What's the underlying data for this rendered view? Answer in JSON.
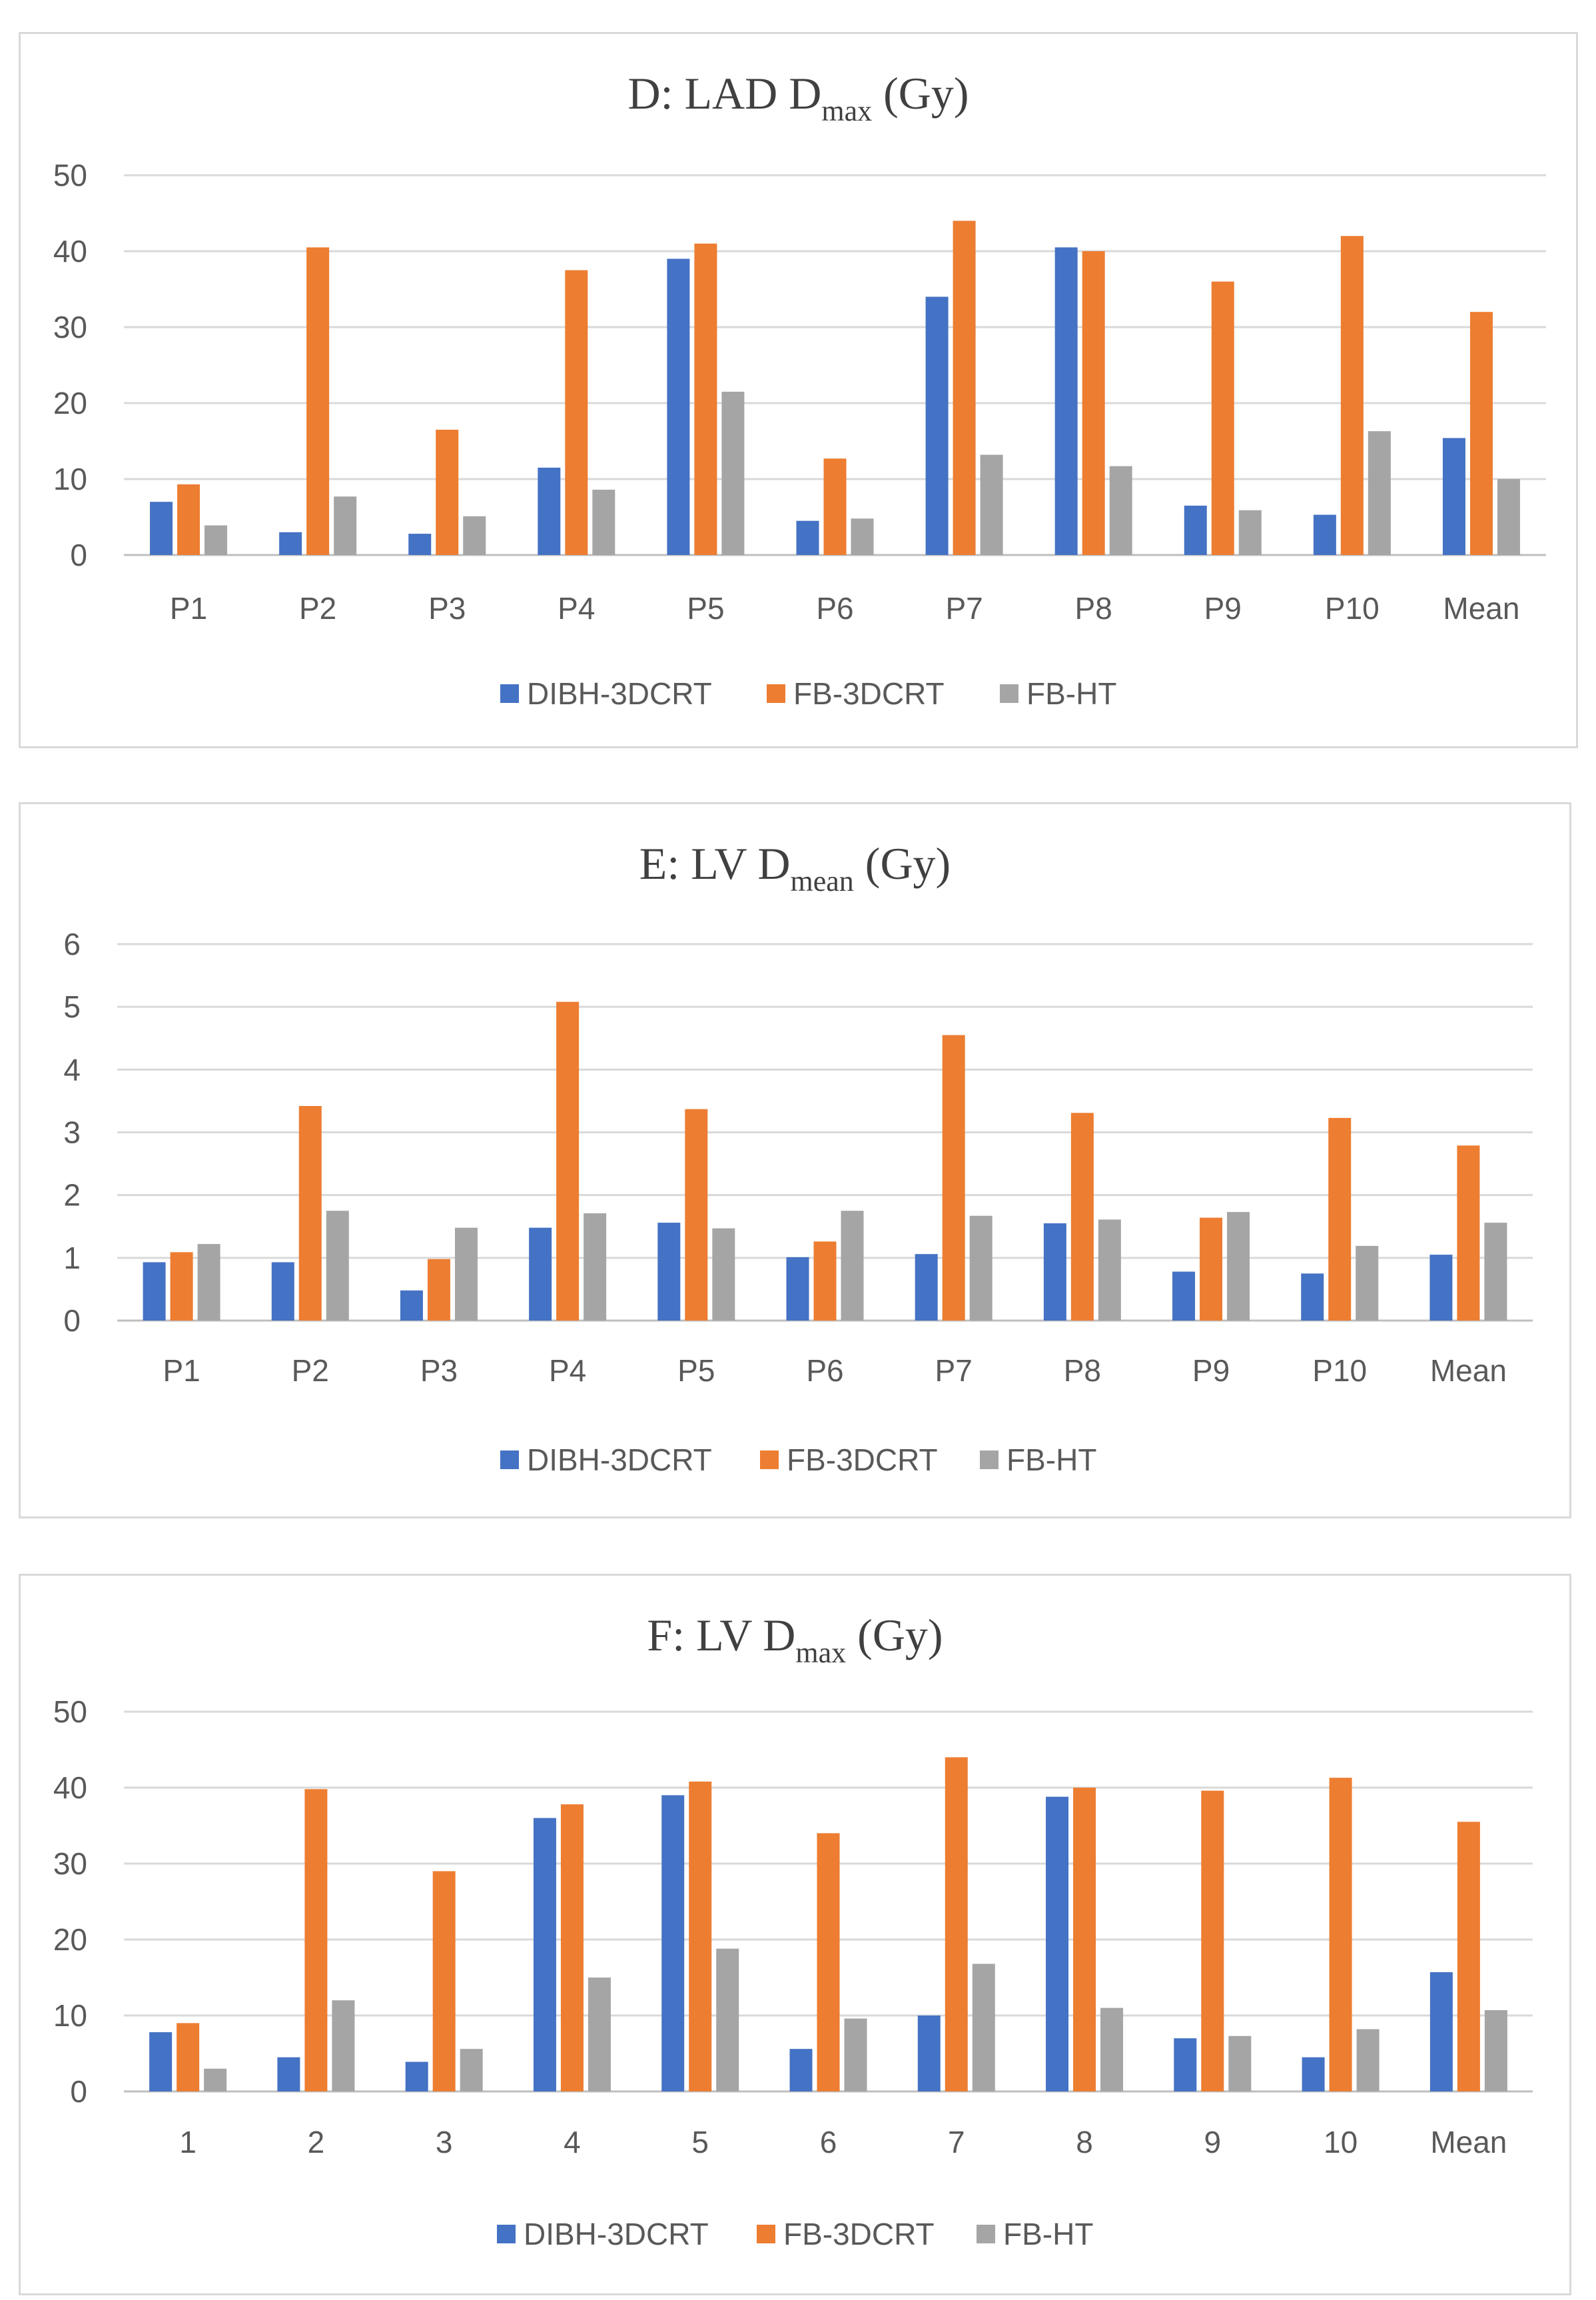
{
  "chart_data": [
    {
      "id": "d",
      "type": "bar",
      "title": "D: LAD Dmax (Gy)",
      "title_parts": {
        "prefix": "D: LAD D",
        "subscript": "max",
        "suffix": " (Gy)"
      },
      "categories": [
        "P1",
        "P2",
        "P3",
        "P4",
        "P5",
        "P6",
        "P7",
        "P8",
        "P9",
        "P10",
        "Mean"
      ],
      "ylim": [
        0,
        50
      ],
      "yticks": [
        0,
        10,
        20,
        30,
        40,
        50
      ],
      "grid": true,
      "legend_position": "bottom",
      "series": [
        {
          "name": "DIBH-3DCRT",
          "color": "#4472C4",
          "values": [
            7.0,
            3.0,
            2.8,
            11.5,
            39.0,
            4.5,
            34.0,
            40.5,
            6.5,
            5.3,
            15.4
          ]
        },
        {
          "name": "FB-3DCRT",
          "color": "#ED7D31",
          "values": [
            9.3,
            40.5,
            16.5,
            37.5,
            41.0,
            12.7,
            44.0,
            40.0,
            36.0,
            42.0,
            32.0
          ]
        },
        {
          "name": "FB-HT",
          "color": "#A5A5A5",
          "values": [
            3.9,
            7.7,
            5.1,
            8.6,
            21.5,
            4.8,
            13.2,
            11.7,
            5.9,
            16.3,
            10.0
          ]
        }
      ]
    },
    {
      "id": "e",
      "type": "bar",
      "title": "E: LV Dmean (Gy)",
      "title_parts": {
        "prefix": "E: LV D",
        "subscript": "mean",
        "suffix": " (Gy)"
      },
      "categories": [
        "P1",
        "P2",
        "P3",
        "P4",
        "P5",
        "P6",
        "P7",
        "P8",
        "P9",
        "P10",
        "Mean"
      ],
      "ylim": [
        0,
        6
      ],
      "yticks": [
        0,
        1,
        2,
        3,
        4,
        5,
        6
      ],
      "grid": true,
      "legend_position": "bottom",
      "series": [
        {
          "name": "DIBH-3DCRT",
          "color": "#4472C4",
          "values": [
            0.93,
            0.93,
            0.48,
            1.48,
            1.56,
            1.01,
            1.06,
            1.55,
            0.78,
            0.75,
            1.05
          ]
        },
        {
          "name": "FB-3DCRT",
          "color": "#ED7D31",
          "values": [
            1.09,
            3.42,
            0.98,
            5.08,
            3.37,
            1.26,
            4.55,
            3.31,
            1.64,
            3.23,
            2.79
          ]
        },
        {
          "name": "FB-HT",
          "color": "#A5A5A5",
          "values": [
            1.22,
            1.75,
            1.48,
            1.71,
            1.47,
            1.75,
            1.67,
            1.61,
            1.73,
            1.19,
            1.56
          ]
        }
      ]
    },
    {
      "id": "f",
      "type": "bar",
      "title": "F: LV Dmax (Gy)",
      "title_parts": {
        "prefix": "F: LV D",
        "subscript": "max",
        "suffix": " (Gy)"
      },
      "categories": [
        "1",
        "2",
        "3",
        "4",
        "5",
        "6",
        "7",
        "8",
        "9",
        "10",
        "Mean"
      ],
      "ylim": [
        0,
        50
      ],
      "yticks": [
        0,
        10,
        20,
        30,
        40,
        50
      ],
      "grid": true,
      "legend_position": "bottom",
      "series": [
        {
          "name": "DIBH-3DCRT",
          "color": "#4472C4",
          "values": [
            7.8,
            4.5,
            3.9,
            36.0,
            39.0,
            5.6,
            10.0,
            38.8,
            7.0,
            4.5,
            15.7
          ]
        },
        {
          "name": "FB-3DCRT",
          "color": "#ED7D31",
          "values": [
            9.0,
            39.8,
            29.0,
            37.8,
            40.8,
            34.0,
            44.0,
            40.0,
            39.6,
            41.3,
            35.5
          ]
        },
        {
          "name": "FB-HT",
          "color": "#A5A5A5",
          "values": [
            3.0,
            12.0,
            5.6,
            15.0,
            18.8,
            9.6,
            16.8,
            11.0,
            7.3,
            8.2,
            10.7
          ]
        }
      ]
    }
  ]
}
